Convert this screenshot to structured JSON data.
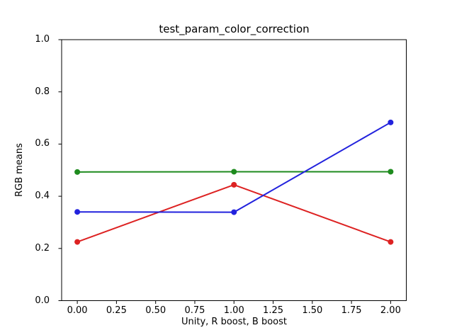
{
  "window": {
    "background": "#ffffff"
  },
  "chart_data": {
    "type": "line",
    "title": "test_param_color_correction",
    "xlabel": "Unity, R boost, B boost",
    "ylabel": "RGB means",
    "x": [
      0,
      1,
      2
    ],
    "series": [
      {
        "name": "red",
        "color": "#dd2222",
        "marker": "o",
        "values": [
          0.225,
          0.444,
          0.225
        ]
      },
      {
        "name": "green",
        "color": "#1e8b1e",
        "marker": "o",
        "values": [
          0.493,
          0.494,
          0.494
        ]
      },
      {
        "name": "blue",
        "color": "#2222dd",
        "marker": "o",
        "values": [
          0.34,
          0.339,
          0.683
        ]
      }
    ],
    "xlim": [
      -0.1,
      2.1
    ],
    "ylim": [
      0.0,
      1.0
    ],
    "xticks": {
      "values": [
        0,
        0.25,
        0.5,
        0.75,
        1.0,
        1.25,
        1.5,
        1.75,
        2.0
      ],
      "labels": [
        "0.00",
        "0.25",
        "0.50",
        "0.75",
        "1.00",
        "1.25",
        "1.50",
        "1.75",
        "2.00"
      ]
    },
    "yticks": {
      "values": [
        0.0,
        0.2,
        0.4,
        0.6,
        0.8,
        1.0
      ],
      "labels": [
        "0.0",
        "0.2",
        "0.4",
        "0.6",
        "0.8",
        "1.0"
      ]
    },
    "grid": false,
    "legend_position": "none",
    "axis_color": "#000000",
    "text_color": "#000000"
  }
}
